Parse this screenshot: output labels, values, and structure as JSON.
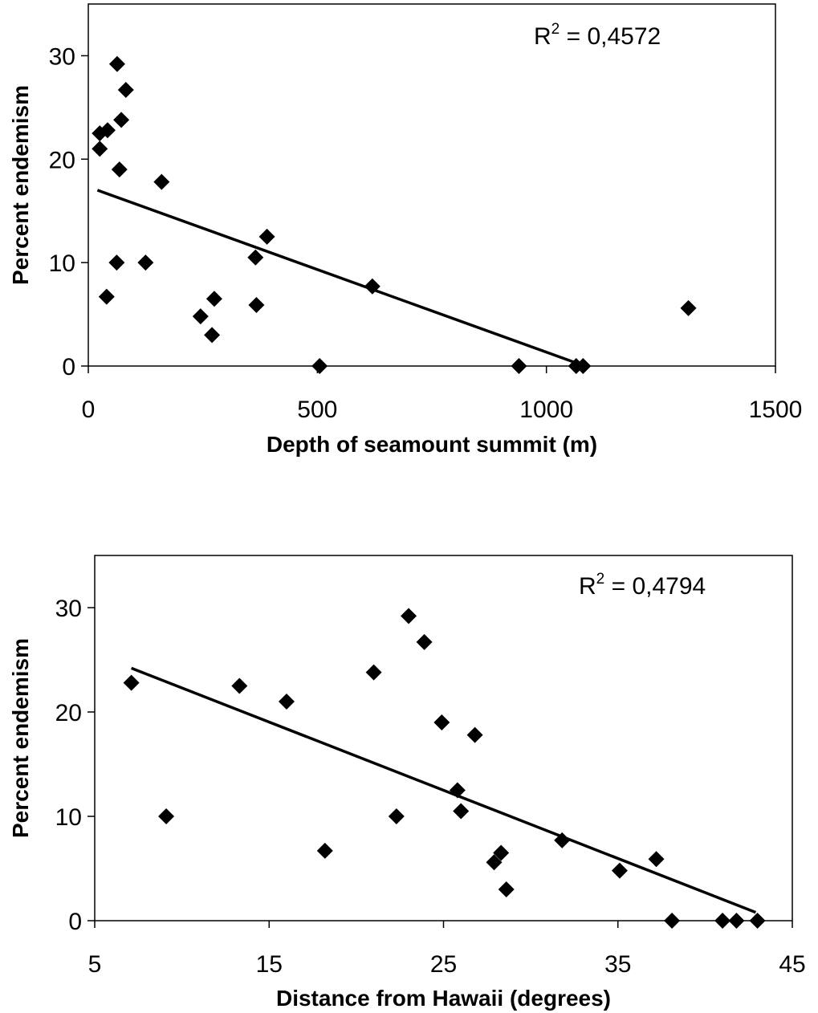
{
  "chart_data": [
    {
      "type": "scatter",
      "xlabel": "Depth of seamount summit (m)",
      "ylabel": "Percent endemism",
      "xlim": [
        0,
        1500
      ],
      "ylim": [
        0,
        35
      ],
      "xticks": [
        "0",
        "500",
        "1000",
        "1500"
      ],
      "yticks": [
        "0",
        "10",
        "20",
        "30"
      ],
      "annotation": {
        "r2_prefix": "R",
        "r2_exp": "2",
        "r2_value": " = 0,4572"
      },
      "points": [
        {
          "x": 63,
          "y": 29.2
        },
        {
          "x": 82,
          "y": 26.7
        },
        {
          "x": 72,
          "y": 23.8
        },
        {
          "x": 25,
          "y": 22.5
        },
        {
          "x": 42,
          "y": 22.8
        },
        {
          "x": 25,
          "y": 21.0
        },
        {
          "x": 68,
          "y": 19.0
        },
        {
          "x": 160,
          "y": 17.8
        },
        {
          "x": 390,
          "y": 12.5
        },
        {
          "x": 365,
          "y": 10.5
        },
        {
          "x": 62,
          "y": 10.0
        },
        {
          "x": 125,
          "y": 10.0
        },
        {
          "x": 620,
          "y": 7.7
        },
        {
          "x": 40,
          "y": 6.7
        },
        {
          "x": 275,
          "y": 6.5
        },
        {
          "x": 367,
          "y": 5.9
        },
        {
          "x": 1310,
          "y": 5.6
        },
        {
          "x": 245,
          "y": 4.8
        },
        {
          "x": 270,
          "y": 3.0
        },
        {
          "x": 505,
          "y": 0.0
        },
        {
          "x": 940,
          "y": 0.0
        },
        {
          "x": 1065,
          "y": 0.0
        },
        {
          "x": 1080,
          "y": 0.0
        }
      ],
      "trendline": {
        "x": [
          20,
          1065
        ],
        "y": [
          17.0,
          0.3
        ]
      }
    },
    {
      "type": "scatter",
      "xlabel": "Distance from Hawaii (degrees)",
      "ylabel": "Percent endemism",
      "xlim": [
        5,
        45
      ],
      "ylim": [
        0,
        35
      ],
      "xticks": [
        "5",
        "15",
        "25",
        "35",
        "45"
      ],
      "yticks": [
        "0",
        "10",
        "20",
        "30"
      ],
      "annotation": {
        "r2_prefix": "R",
        "r2_exp": "2",
        "r2_value": " = 0,4794"
      },
      "points": [
        {
          "x": 23.0,
          "y": 29.2
        },
        {
          "x": 23.9,
          "y": 26.7
        },
        {
          "x": 21.0,
          "y": 23.8
        },
        {
          "x": 7.1,
          "y": 22.8
        },
        {
          "x": 13.3,
          "y": 22.5
        },
        {
          "x": 16.0,
          "y": 21.0
        },
        {
          "x": 24.9,
          "y": 19.0
        },
        {
          "x": 26.8,
          "y": 17.8
        },
        {
          "x": 25.8,
          "y": 12.5
        },
        {
          "x": 26.0,
          "y": 10.5
        },
        {
          "x": 9.1,
          "y": 10.0
        },
        {
          "x": 22.3,
          "y": 10.0
        },
        {
          "x": 31.8,
          "y": 7.7
        },
        {
          "x": 18.2,
          "y": 6.7
        },
        {
          "x": 28.3,
          "y": 6.5
        },
        {
          "x": 37.2,
          "y": 5.9
        },
        {
          "x": 27.9,
          "y": 5.6
        },
        {
          "x": 35.1,
          "y": 4.8
        },
        {
          "x": 28.6,
          "y": 3.0
        },
        {
          "x": 38.1,
          "y": 0.0
        },
        {
          "x": 41.0,
          "y": 0.0
        },
        {
          "x": 41.8,
          "y": 0.0
        },
        {
          "x": 43.0,
          "y": 0.0
        }
      ],
      "trendline": {
        "x": [
          7.1,
          42.9
        ],
        "y": [
          24.2,
          0.8
        ]
      }
    }
  ]
}
